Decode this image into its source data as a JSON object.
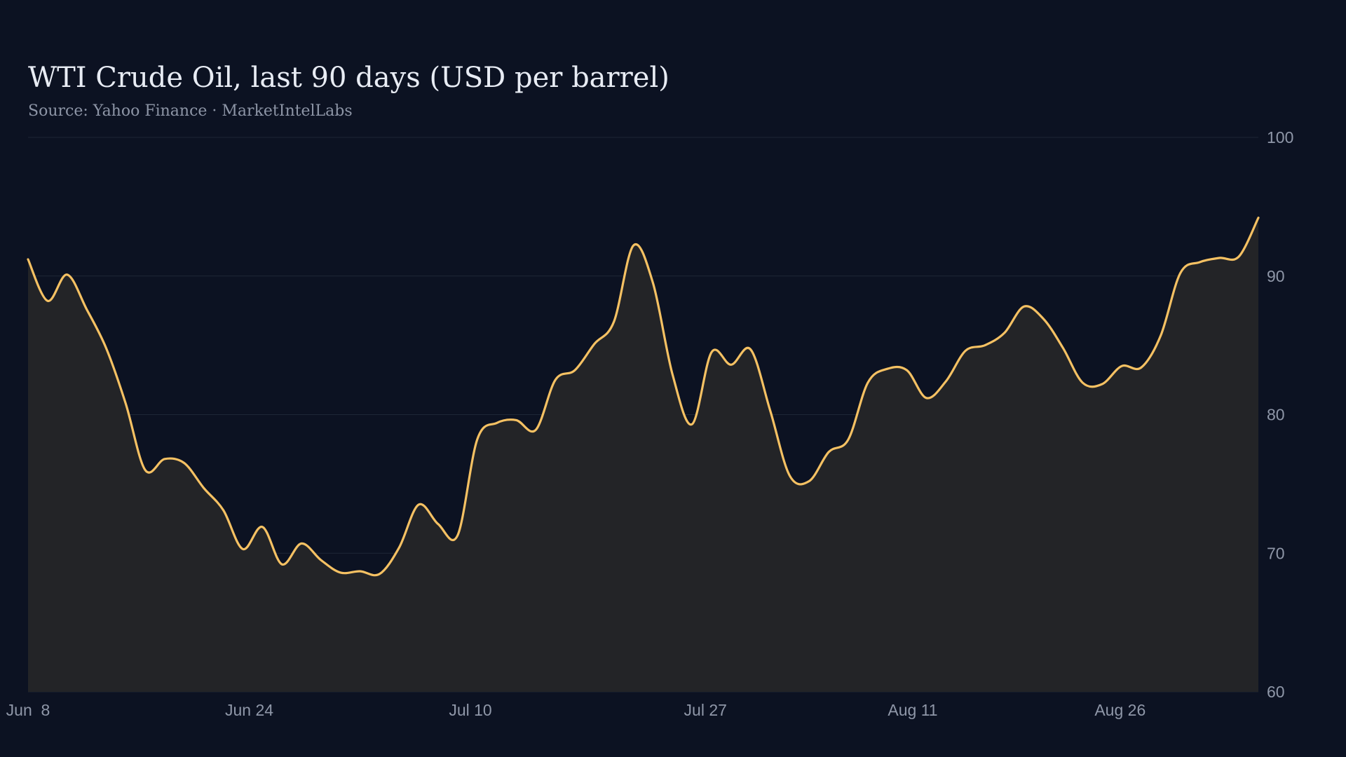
{
  "colors": {
    "background": "#0c1222",
    "line": "#f5c163",
    "area": "#232427",
    "grid": "#1e2736",
    "title": "#e8ecf4",
    "subtitle": "#8d95a6",
    "tick": "#8f97a8"
  },
  "chart_data": {
    "type": "area",
    "title": "WTI Crude Oil, last 90 days (USD per barrel)",
    "subtitle": "Source: Yahoo Finance · MarketIntelLabs",
    "xlabel": "",
    "ylabel": "",
    "ylim": [
      60,
      100
    ],
    "yticks": [
      60,
      70,
      80,
      90,
      100
    ],
    "y_axis_side": "right",
    "grid": "horizontal",
    "legend": "none",
    "x_tick_labels": [
      "Jun  8",
      "Jun 24",
      "Jul 10",
      "Jul 27",
      "Aug 11",
      "Aug 26"
    ],
    "x_tick_dates": [
      "2024-06-08",
      "2024-06-24",
      "2024-07-10",
      "2024-07-27",
      "2024-08-11",
      "2024-08-26"
    ],
    "x_start": "2024-06-08",
    "x_end": "2024-09-05",
    "series": [
      {
        "values": [
          91.2,
          88.2,
          90.1,
          87.6,
          84.8,
          80.8,
          76.0,
          76.8,
          76.5,
          74.7,
          73.1,
          70.3,
          71.9,
          69.2,
          70.7,
          69.5,
          68.6,
          68.7,
          68.5,
          70.4,
          73.5,
          72.1,
          71.3,
          78.2,
          79.4,
          79.6,
          78.9,
          82.5,
          83.2,
          85.1,
          86.7,
          92.2,
          89.5,
          82.9,
          79.3,
          84.5,
          83.6,
          84.7,
          80.3,
          75.6,
          75.2,
          77.3,
          78.2,
          82.3,
          83.3,
          83.2,
          81.2,
          82.4,
          84.6,
          85.0,
          85.9,
          87.8,
          86.9,
          84.8,
          82.3,
          82.2,
          83.5,
          83.4,
          85.7,
          90.2,
          91.0,
          91.3,
          91.4,
          94.2
        ]
      }
    ]
  }
}
